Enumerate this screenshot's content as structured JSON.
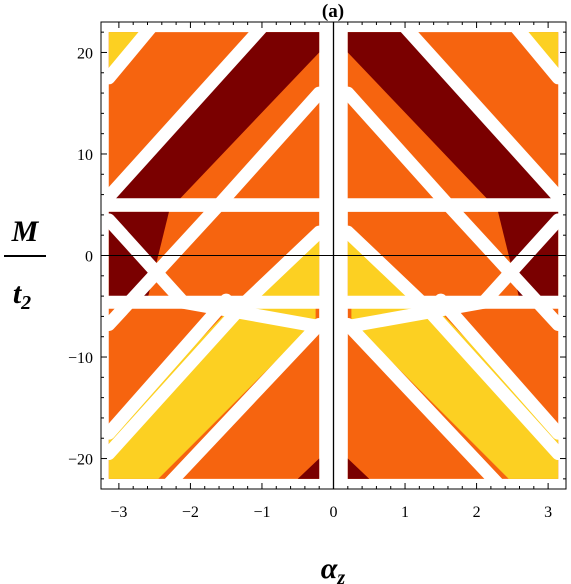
{
  "chart_data": {
    "type": "heatmap",
    "title": "(a)",
    "xlabel": "α",
    "xlabel_sub": "z",
    "ylabel_num": "M",
    "ylabel_den": "t",
    "ylabel_den_sub": "2",
    "xlim": [
      -3.25,
      3.25
    ],
    "ylim": [
      -23,
      23
    ],
    "xticks": [
      -3,
      -2,
      -1,
      0,
      1,
      2,
      3
    ],
    "xtick_labels": [
      "−3",
      "−2",
      "−1",
      "0",
      "1",
      "2",
      "3"
    ],
    "yticks": [
      -20,
      -10,
      0,
      10,
      20
    ],
    "ytick_labels": [
      "−20",
      "−10",
      "0",
      "10",
      "20"
    ],
    "data_domain": {
      "x": [
        -3.14159,
        3.14159
      ],
      "y": [
        -22,
        22
      ]
    },
    "grid": false,
    "colors": {
      "background": "#ffffff",
      "levels": [
        "#fcd022",
        "#f6640f",
        "#7a0000"
      ],
      "line": "#000000"
    },
    "bands_description": "Diagonal regions separated by lines M = ±(4·α + c), horizontal gaps at M = ±4.5, vertical gap at α = 0",
    "regions": [
      {
        "x": [
          -3.14,
          -2.55
        ],
        "y": [
          17,
          22
        ],
        "level": 0
      },
      {
        "x": [
          2.55,
          3.14
        ],
        "y": [
          17,
          22
        ],
        "level": 0
      },
      {
        "x": [
          -3.14,
          -0.3
        ],
        "y": [
          5,
          22
        ],
        "level": 1
      },
      {
        "x": [
          0.3,
          3.14
        ],
        "y": [
          5,
          22
        ],
        "level": 1
      },
      {
        "x": [
          -2.3,
          -0.3
        ],
        "y": [
          5,
          22
        ],
        "level": 2
      },
      {
        "x": [
          0.3,
          2.3
        ],
        "y": [
          5,
          22
        ],
        "level": 2
      },
      {
        "x": [
          -3.14,
          -2.3
        ],
        "y": [
          -4,
          4.3
        ],
        "level": 2
      },
      {
        "x": [
          2.3,
          3.14
        ],
        "y": [
          -4,
          4.3
        ],
        "level": 2
      },
      {
        "x": [
          -2.9,
          -0.2
        ],
        "y": [
          -4,
          4.3
        ],
        "level": 1
      },
      {
        "x": [
          0.2,
          2.9
        ],
        "y": [
          -4,
          4.3
        ],
        "level": 1
      },
      {
        "x": [
          -1.1,
          -0.15
        ],
        "y": [
          -4,
          2.5
        ],
        "level": 0
      },
      {
        "x": [
          0.15,
          1.1
        ],
        "y": [
          -4,
          2.5
        ],
        "level": 0
      },
      {
        "x": [
          -3.14,
          -0.3
        ],
        "y": [
          -22,
          -4.5
        ],
        "level": 1
      },
      {
        "x": [
          0.3,
          3.14
        ],
        "y": [
          -22,
          -4.5
        ],
        "level": 1
      },
      {
        "x": [
          -3.14,
          -0.3
        ],
        "y": [
          -22,
          -4.5
        ],
        "level": 0
      },
      {
        "x": [
          0.3,
          3.14
        ],
        "y": [
          -22,
          -4.5
        ],
        "level": 0
      },
      {
        "x": [
          -0.45,
          -0.15
        ],
        "y": [
          -22,
          -20
        ],
        "level": 2
      },
      {
        "x": [
          0.15,
          0.45
        ],
        "y": [
          -22,
          -20
        ],
        "level": 2
      }
    ],
    "hline": 0,
    "vline": 0
  }
}
